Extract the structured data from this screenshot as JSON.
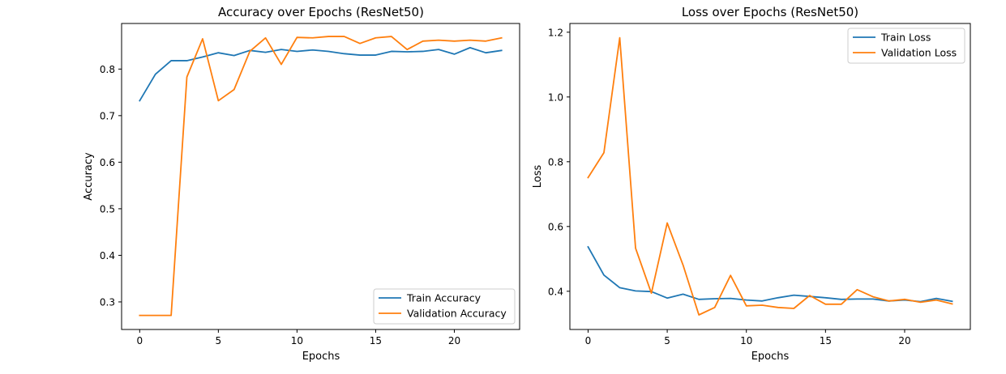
{
  "chart_data": [
    {
      "type": "line",
      "title": "Accuracy over Epochs (ResNet50)",
      "xlabel": "Epochs",
      "ylabel": "Accuracy",
      "xlim": [
        -1.15,
        24.15
      ],
      "ylim": [
        0.2408,
        0.8979
      ],
      "xticks": [
        0,
        5,
        10,
        15,
        20
      ],
      "yticks": [
        0.3,
        0.4,
        0.5,
        0.6,
        0.7,
        0.8
      ],
      "xtick_labels": [
        "0",
        "5",
        "10",
        "15",
        "20"
      ],
      "ytick_labels": [
        "0.3",
        "0.4",
        "0.5",
        "0.6",
        "0.7",
        "0.8"
      ],
      "legend_position": "lower right",
      "grid": false,
      "x": [
        0,
        1,
        2,
        3,
        4,
        5,
        6,
        7,
        8,
        9,
        10,
        11,
        12,
        13,
        14,
        15,
        16,
        17,
        18,
        19,
        20,
        21,
        22,
        23
      ],
      "series": [
        {
          "name": "Train Accuracy",
          "color": "#1f77b4",
          "values": [
            0.732,
            0.789,
            0.818,
            0.818,
            0.826,
            0.835,
            0.829,
            0.84,
            0.836,
            0.842,
            0.838,
            0.841,
            0.838,
            0.833,
            0.83,
            0.83,
            0.838,
            0.837,
            0.838,
            0.842,
            0.832,
            0.846,
            0.835,
            0.84
          ]
        },
        {
          "name": "Validation Accuracy",
          "color": "#ff7f0e",
          "values": [
            0.271,
            0.271,
            0.271,
            0.783,
            0.865,
            0.732,
            0.756,
            0.838,
            0.867,
            0.81,
            0.868,
            0.867,
            0.87,
            0.87,
            0.855,
            0.867,
            0.87,
            0.842,
            0.86,
            0.862,
            0.86,
            0.862,
            0.86,
            0.867
          ]
        }
      ]
    },
    {
      "type": "line",
      "title": "Loss over Epochs (ResNet50)",
      "xlabel": "Epochs",
      "ylabel": "Loss",
      "xlim": [
        -1.15,
        24.15
      ],
      "ylim": [
        0.282,
        1.227
      ],
      "xticks": [
        0,
        5,
        10,
        15,
        20
      ],
      "yticks": [
        0.4,
        0.6,
        0.8,
        1.0,
        1.2
      ],
      "xtick_labels": [
        "0",
        "5",
        "10",
        "15",
        "20"
      ],
      "ytick_labels": [
        "0.4",
        "0.6",
        "0.8",
        "1.0",
        "1.2"
      ],
      "legend_position": "upper right",
      "grid": false,
      "x": [
        0,
        1,
        2,
        3,
        4,
        5,
        6,
        7,
        8,
        9,
        10,
        11,
        12,
        13,
        14,
        15,
        16,
        17,
        18,
        19,
        20,
        21,
        22,
        23
      ],
      "series": [
        {
          "name": "Train Loss",
          "color": "#1f77b4",
          "values": [
            0.537,
            0.45,
            0.411,
            0.401,
            0.399,
            0.379,
            0.391,
            0.375,
            0.377,
            0.378,
            0.373,
            0.37,
            0.38,
            0.388,
            0.384,
            0.38,
            0.375,
            0.376,
            0.376,
            0.37,
            0.373,
            0.368,
            0.378,
            0.369
          ]
        },
        {
          "name": "Validation Loss",
          "color": "#ff7f0e",
          "values": [
            0.751,
            0.828,
            1.183,
            0.533,
            0.394,
            0.611,
            0.481,
            0.327,
            0.35,
            0.449,
            0.355,
            0.357,
            0.35,
            0.347,
            0.387,
            0.36,
            0.36,
            0.405,
            0.383,
            0.37,
            0.375,
            0.366,
            0.373,
            0.361
          ]
        }
      ]
    }
  ]
}
